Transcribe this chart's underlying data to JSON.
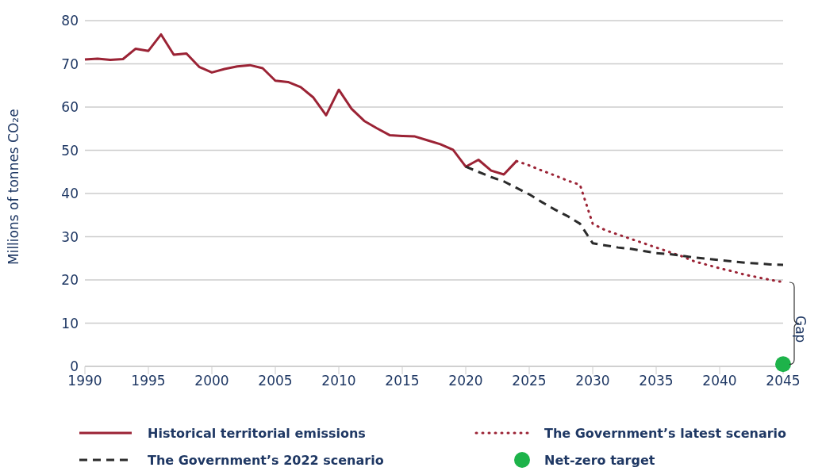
{
  "chart_data": {
    "type": "line",
    "ylabel": "Millions of tonnes CO₂e",
    "xlim": [
      1990,
      2045
    ],
    "xticks": [
      1990,
      1995,
      2000,
      2005,
      2010,
      2015,
      2020,
      2025,
      2030,
      2035,
      2040,
      2045
    ],
    "ylim": [
      0,
      80
    ],
    "yticks": [
      0,
      10,
      20,
      30,
      40,
      50,
      60,
      70,
      80
    ],
    "grid": "y",
    "legend": "bottom",
    "annotations": [
      "Gap"
    ],
    "series": [
      {
        "name": "Historical territorial emissions",
        "color": "#9b2335",
        "line_style": "solid",
        "x": [
          1990,
          1991,
          1992,
          1993,
          1994,
          1995,
          1996,
          1997,
          1998,
          1999,
          2000,
          2001,
          2002,
          2003,
          2004,
          2005,
          2006,
          2007,
          2008,
          2009,
          2010,
          2011,
          2012,
          2013,
          2014,
          2015,
          2016,
          2017,
          2018,
          2019,
          2020,
          2021,
          2022,
          2023,
          2024
        ],
        "values": [
          71.0,
          71.2,
          70.9,
          71.1,
          73.5,
          73.0,
          76.8,
          72.1,
          72.4,
          69.3,
          68.0,
          68.8,
          69.4,
          69.7,
          69.0,
          66.1,
          65.8,
          64.6,
          62.2,
          58.1,
          64.0,
          59.6,
          56.8,
          55.1,
          53.5,
          53.3,
          53.2,
          52.3,
          51.4,
          50.1,
          46.2,
          47.8,
          45.3,
          44.4,
          47.5
        ]
      },
      {
        "name": "The Government’s latest scenario",
        "color": "#9b2335",
        "line_style": "dotted",
        "x": [
          2024,
          2025,
          2026,
          2027,
          2028,
          2029,
          2030,
          2031,
          2032,
          2033,
          2034,
          2035,
          2036,
          2037,
          2038,
          2039,
          2040,
          2041,
          2042,
          2043,
          2044,
          2045
        ],
        "values": [
          47.5,
          46.5,
          45.3,
          44.2,
          43.0,
          42.0,
          33.0,
          31.5,
          30.5,
          29.5,
          28.5,
          27.5,
          26.5,
          25.5,
          24.3,
          23.5,
          22.7,
          22.0,
          21.2,
          20.6,
          20.0,
          19.5
        ]
      },
      {
        "name": "The Government’s 2022 scenario",
        "color": "#2b2b2b",
        "line_style": "dashed",
        "x": [
          2020,
          2021,
          2022,
          2023,
          2024,
          2025,
          2026,
          2027,
          2028,
          2029,
          2030,
          2031,
          2032,
          2033,
          2034,
          2035,
          2036,
          2037,
          2038,
          2039,
          2040,
          2041,
          2042,
          2043,
          2044,
          2045
        ],
        "values": [
          46.2,
          45.0,
          43.8,
          42.8,
          41.3,
          39.8,
          38.0,
          36.3,
          34.8,
          33.0,
          28.5,
          28.0,
          27.5,
          27.2,
          26.7,
          26.2,
          26.0,
          25.6,
          25.2,
          24.9,
          24.6,
          24.3,
          24.0,
          23.8,
          23.6,
          23.5
        ]
      },
      {
        "name": "Net-zero target",
        "type": "scatter",
        "color": "#1db34a",
        "marker": "circle",
        "x": [
          2045
        ],
        "values": [
          0.5
        ]
      }
    ]
  }
}
